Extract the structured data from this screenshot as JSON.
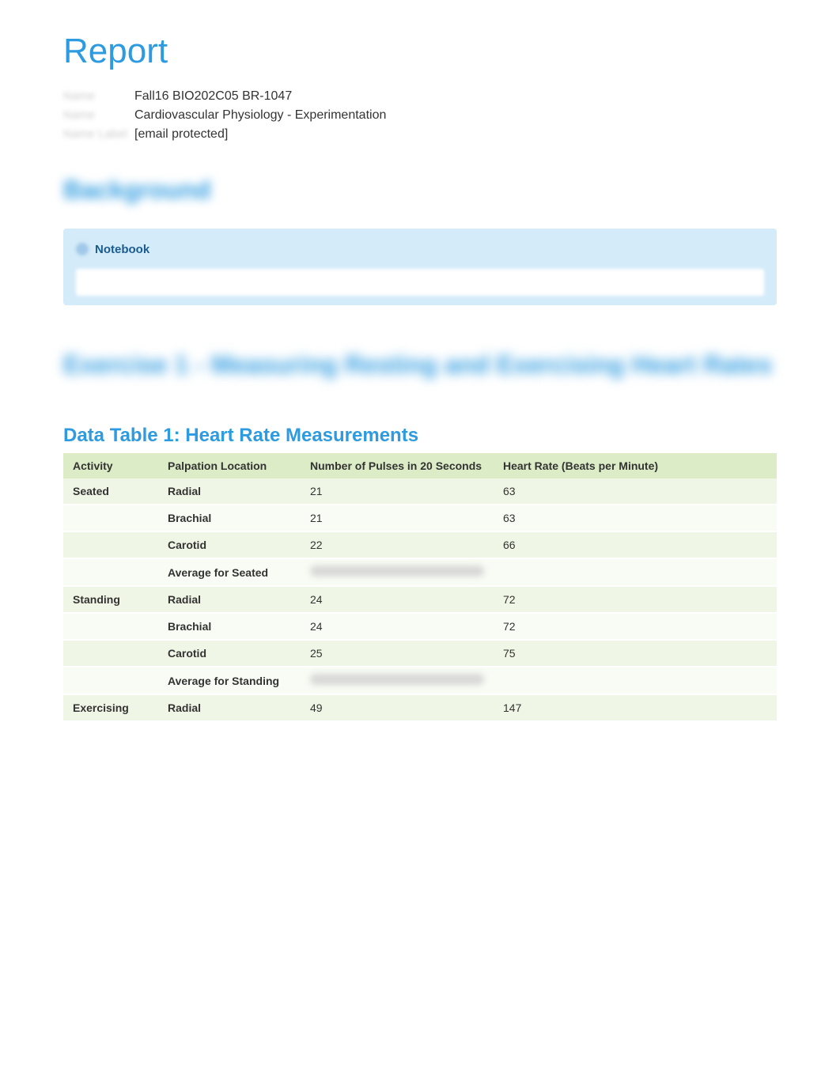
{
  "report": {
    "title": "Report"
  },
  "metadata": {
    "rows": [
      {
        "label": "Name",
        "value": "Fall16 BIO202C05 BR-1047"
      },
      {
        "label": "Name",
        "value": "Cardiovascular Physiology - Experimentation"
      },
      {
        "label": "Name Label",
        "value": "[email protected]"
      }
    ]
  },
  "background_heading": "Background",
  "notebook": {
    "label": "Notebook"
  },
  "exercise_heading": "Exercise 1 - Measuring Resting and Exercising Heart Rates",
  "table": {
    "title": "Data Table 1: Heart Rate Measurements",
    "columns": [
      "Activity",
      "Palpation Location",
      "Number of Pulses in 20 Seconds",
      "Heart Rate (Beats per Minute)"
    ],
    "rows": [
      {
        "activity": "Seated",
        "palpation": "Radial",
        "pulses": "21",
        "rate": "63",
        "rowClass": "odd"
      },
      {
        "activity": "",
        "palpation": "Brachial",
        "pulses": "21",
        "rate": "63",
        "rowClass": "even"
      },
      {
        "activity": "",
        "palpation": "Carotid",
        "pulses": "22",
        "rate": "66",
        "rowClass": "odd"
      },
      {
        "activity": "",
        "palpation": "Average for Seated",
        "pulses": "",
        "rate": "",
        "rowClass": "even",
        "blurred": true
      },
      {
        "activity": "Standing",
        "palpation": "Radial",
        "pulses": "24",
        "rate": "72",
        "rowClass": "odd"
      },
      {
        "activity": "",
        "palpation": "Brachial",
        "pulses": "24",
        "rate": "72",
        "rowClass": "even"
      },
      {
        "activity": "",
        "palpation": "Carotid",
        "pulses": "25",
        "rate": "75",
        "rowClass": "odd"
      },
      {
        "activity": "",
        "palpation": "Average for Standing",
        "pulses": "",
        "rate": "",
        "rowClass": "even",
        "blurred": true
      },
      {
        "activity": "Exercising",
        "palpation": "Radial",
        "pulses": "49",
        "rate": "147",
        "rowClass": "odd"
      }
    ]
  },
  "colors": {
    "accent": "#2e9be0",
    "table_header_bg": "#dcecc6",
    "row_odd_bg": "#f0f6e5",
    "row_even_bg": "#f9fcf4",
    "notebook_bg": "#d4ebf9",
    "notebook_text": "#1a5c8f"
  }
}
